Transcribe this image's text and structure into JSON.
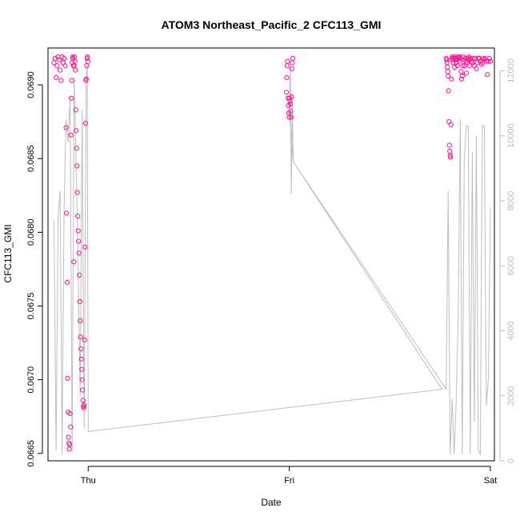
{
  "chart_data": {
    "type": "scatter",
    "title": "ATOM3 Northeast_Pacific_2 CFC113_GMI",
    "xlabel": "Date",
    "ylabel": "CFC113_GMI",
    "x_ticks": [
      "Thu",
      "Fri",
      "Sat"
    ],
    "y_ticks": [
      "0.0665",
      "0.0670",
      "0.0675",
      "0.0680",
      "0.0685",
      "0.0690"
    ],
    "y_ticks_right": [
      "0",
      "2000",
      "4000",
      "6000",
      "8000",
      "10000",
      "12000"
    ],
    "ylim": [
      0.06645,
      0.06925
    ],
    "ylim_right": [
      0,
      12700
    ],
    "xlim_days": [
      -0.2,
      2.02
    ],
    "grid": false,
    "colors": {
      "points": "#ff1493",
      "altitude_line": "#bebebe",
      "axes": "#000000",
      "right_axis": "#bebebe"
    },
    "series": [
      {
        "kind": "scatter",
        "points": [
          [
            -0.17,
            0.06915
          ],
          [
            -0.165,
            0.06918
          ],
          [
            -0.16,
            0.06905
          ],
          [
            -0.155,
            0.06913
          ],
          [
            -0.15,
            0.06919
          ],
          [
            -0.145,
            0.06917
          ],
          [
            -0.14,
            0.0691
          ],
          [
            -0.135,
            0.06903
          ],
          [
            -0.13,
            0.06919
          ],
          [
            -0.125,
            0.06915
          ],
          [
            -0.12,
            0.06918
          ],
          [
            -0.115,
            0.06913
          ],
          [
            -0.11,
            0.06871
          ],
          [
            -0.108,
            0.06813
          ],
          [
            -0.105,
            0.06766
          ],
          [
            -0.103,
            0.06701
          ],
          [
            -0.1,
            0.06678
          ],
          [
            -0.098,
            0.06661
          ],
          [
            -0.096,
            0.06657
          ],
          [
            -0.094,
            0.06653
          ],
          [
            -0.092,
            0.06656
          ],
          [
            -0.09,
            0.06677
          ],
          [
            -0.088,
            0.06668
          ],
          [
            -0.086,
            0.06866
          ],
          [
            -0.084,
            0.06891
          ],
          [
            -0.082,
            0.06903
          ],
          [
            -0.08,
            0.06915
          ],
          [
            -0.078,
            0.06919
          ],
          [
            -0.076,
            0.06918
          ],
          [
            -0.074,
            0.06913
          ],
          [
            -0.072,
            0.0678
          ],
          [
            -0.07,
            0.06913
          ],
          [
            -0.068,
            0.06919
          ],
          [
            -0.066,
            0.06916
          ],
          [
            -0.064,
            0.0691
          ],
          [
            -0.062,
            0.06883
          ],
          [
            -0.06,
            0.06869
          ],
          [
            -0.058,
            0.06857
          ],
          [
            -0.056,
            0.06845
          ],
          [
            -0.054,
            0.06827
          ],
          [
            -0.052,
            0.06811
          ],
          [
            -0.05,
            0.06801
          ],
          [
            -0.048,
            0.06794
          ],
          [
            -0.046,
            0.06786
          ],
          [
            -0.044,
            0.06771
          ],
          [
            -0.042,
            0.06753
          ],
          [
            -0.04,
            0.0674
          ],
          [
            -0.038,
            0.06729
          ],
          [
            -0.036,
            0.06721
          ],
          [
            -0.034,
            0.06714
          ],
          [
            -0.032,
            0.06707
          ],
          [
            -0.03,
            0.067
          ],
          [
            -0.028,
            0.06693
          ],
          [
            -0.026,
            0.06686
          ],
          [
            -0.024,
            0.06682
          ],
          [
            -0.022,
            0.06681
          ],
          [
            -0.02,
            0.06683
          ],
          [
            -0.018,
            0.06727
          ],
          [
            -0.016,
            0.0679
          ],
          [
            -0.014,
            0.06874
          ],
          [
            -0.012,
            0.06903
          ],
          [
            -0.01,
            0.06904
          ],
          [
            -0.008,
            0.06913
          ],
          [
            -0.006,
            0.06918
          ],
          [
            -0.004,
            0.06919
          ],
          [
            -0.002,
            0.06916
          ],
          [
            0.985,
            0.06895
          ],
          [
            0.987,
            0.06905
          ],
          [
            0.989,
            0.06913
          ],
          [
            0.991,
            0.06916
          ],
          [
            0.993,
            0.06891
          ],
          [
            0.995,
            0.06886
          ],
          [
            0.997,
            0.06881
          ],
          [
            0.999,
            0.06878
          ],
          [
            1.001,
            0.06891
          ],
          [
            1.003,
            0.06889
          ],
          [
            1.005,
            0.06887
          ],
          [
            1.007,
            0.06882
          ],
          [
            1.009,
            0.06878
          ],
          [
            1.011,
            0.06892
          ],
          [
            1.013,
            0.06911
          ],
          [
            1.015,
            0.06915
          ],
          [
            1.017,
            0.06918
          ],
          [
            1.78,
            0.06918
          ],
          [
            1.782,
            0.06917
          ],
          [
            1.784,
            0.06915
          ],
          [
            1.786,
            0.06912
          ],
          [
            1.788,
            0.06909
          ],
          [
            1.79,
            0.06906
          ],
          [
            1.792,
            0.06896
          ],
          [
            1.794,
            0.06875
          ],
          [
            1.796,
            0.06859
          ],
          [
            1.798,
            0.06855
          ],
          [
            1.8,
            0.06852
          ],
          [
            1.802,
            0.06851
          ],
          [
            1.804,
            0.06873
          ],
          [
            1.806,
            0.06904
          ],
          [
            1.808,
            0.06917
          ],
          [
            1.81,
            0.06919
          ],
          [
            1.812,
            0.06918
          ],
          [
            1.815,
            0.06915
          ],
          [
            1.818,
            0.06918
          ],
          [
            1.821,
            0.06912
          ],
          [
            1.824,
            0.06919
          ],
          [
            1.827,
            0.06918
          ],
          [
            1.83,
            0.06915
          ],
          [
            1.833,
            0.06917
          ],
          [
            1.836,
            0.06913
          ],
          [
            1.839,
            0.06919
          ],
          [
            1.842,
            0.06918
          ],
          [
            1.845,
            0.06916
          ],
          [
            1.848,
            0.06919
          ],
          [
            1.851,
            0.06918
          ],
          [
            1.854,
            0.06909
          ],
          [
            1.857,
            0.06904
          ],
          [
            1.86,
            0.06906
          ],
          [
            1.863,
            0.06913
          ],
          [
            1.866,
            0.06919
          ],
          [
            1.869,
            0.06917
          ],
          [
            1.872,
            0.06913
          ],
          [
            1.875,
            0.06918
          ],
          [
            1.878,
            0.06916
          ],
          [
            1.881,
            0.06908
          ],
          [
            1.884,
            0.06915
          ],
          [
            1.887,
            0.06918
          ],
          [
            1.89,
            0.06917
          ],
          [
            1.893,
            0.06919
          ],
          [
            1.896,
            0.06913
          ],
          [
            1.9,
            0.06918
          ],
          [
            1.905,
            0.06916
          ],
          [
            1.91,
            0.06915
          ],
          [
            1.915,
            0.06918
          ],
          [
            1.92,
            0.06913
          ],
          [
            1.925,
            0.06918
          ],
          [
            1.93,
            0.06911
          ],
          [
            1.935,
            0.06915
          ],
          [
            1.94,
            0.06918
          ],
          [
            1.945,
            0.06918
          ],
          [
            1.95,
            0.06916
          ],
          [
            1.955,
            0.06914
          ],
          [
            1.96,
            0.06915
          ],
          [
            1.965,
            0.06918
          ],
          [
            1.97,
            0.06917
          ],
          [
            1.975,
            0.06918
          ],
          [
            1.98,
            0.06916
          ],
          [
            1.985,
            0.06907
          ],
          [
            1.99,
            0.06916
          ],
          [
            1.995,
            0.06918
          ],
          [
            2.0,
            0.06916
          ]
        ]
      },
      {
        "kind": "line",
        "axis": "right",
        "points": [
          [
            -0.17,
            7400
          ],
          [
            -0.16,
            300
          ],
          [
            -0.15,
            7500
          ],
          [
            -0.14,
            8300
          ],
          [
            -0.13,
            200
          ],
          [
            -0.12,
            7800
          ],
          [
            -0.11,
            10500
          ],
          [
            -0.1,
            9800
          ],
          [
            -0.09,
            11200
          ],
          [
            -0.08,
            300
          ],
          [
            -0.07,
            11800
          ],
          [
            -0.06,
            9000
          ],
          [
            -0.05,
            6000
          ],
          [
            -0.04,
            2000
          ],
          [
            -0.03,
            10800
          ],
          [
            -0.02,
            1000
          ],
          [
            -0.01,
            11800
          ],
          [
            -0.005,
            12200
          ],
          [
            0,
            900
          ],
          [
            1.76,
            2200
          ],
          [
            1.02,
            9200
          ],
          [
            1.0,
            10800
          ],
          [
            1.005,
            12200
          ],
          [
            1.01,
            8200
          ],
          [
            1.015,
            11000
          ],
          [
            1.02,
            9200
          ],
          [
            1.78,
            2200
          ],
          [
            1.79,
            8300
          ],
          [
            1.8,
            200
          ],
          [
            1.81,
            1900
          ],
          [
            1.82,
            200
          ],
          [
            1.83,
            1800
          ],
          [
            1.84,
            4500
          ],
          [
            1.85,
            10500
          ],
          [
            1.86,
            200
          ],
          [
            1.87,
            9200
          ],
          [
            1.88,
            10300
          ],
          [
            1.89,
            10300
          ],
          [
            1.9,
            200
          ],
          [
            1.91,
            9500
          ],
          [
            1.92,
            1200
          ],
          [
            1.93,
            10000
          ],
          [
            1.94,
            300
          ],
          [
            1.95,
            200
          ],
          [
            1.96,
            10300
          ],
          [
            1.97,
            10300
          ],
          [
            1.98,
            1700
          ],
          [
            1.99,
            2500
          ],
          [
            2.0,
            7800
          ]
        ]
      }
    ]
  }
}
